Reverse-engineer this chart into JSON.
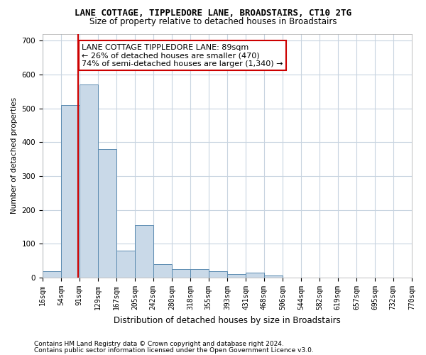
{
  "title": "LANE COTTAGE, TIPPLEDORE LANE, BROADSTAIRS, CT10 2TG",
  "subtitle": "Size of property relative to detached houses in Broadstairs",
  "xlabel": "Distribution of detached houses by size in Broadstairs",
  "ylabel": "Number of detached properties",
  "bin_edges": [
    16,
    54,
    91,
    129,
    167,
    205,
    242,
    280,
    318,
    355,
    393,
    431,
    468,
    506,
    544,
    582,
    619,
    657,
    695,
    732,
    770
  ],
  "bar_heights": [
    20,
    510,
    570,
    380,
    80,
    155,
    40,
    25,
    25,
    20,
    10,
    15,
    7,
    0,
    0,
    0,
    0,
    0,
    0,
    0
  ],
  "bar_color": "#c9d9e8",
  "bar_edge_color": "#5a8ab0",
  "vline_color": "#cc0000",
  "vline_x": 89,
  "annotation_text": "LANE COTTAGE TIPPLEDORE LANE: 89sqm\n← 26% of detached houses are smaller (470)\n74% of semi-detached houses are larger (1,340) →",
  "annotation_box_color": "#ffffff",
  "annotation_box_edge": "#cc0000",
  "ylim": [
    0,
    720
  ],
  "yticks": [
    0,
    100,
    200,
    300,
    400,
    500,
    600,
    700
  ],
  "footnote1": "Contains HM Land Registry data © Crown copyright and database right 2024.",
  "footnote2": "Contains public sector information licensed under the Open Government Licence v3.0.",
  "background_color": "#ffffff",
  "grid_color": "#c8d4e0",
  "title_fontsize": 9,
  "subtitle_fontsize": 8.5,
  "ylabel_fontsize": 7.5,
  "xlabel_fontsize": 8.5,
  "tick_fontsize": 7,
  "footnote_fontsize": 6.5,
  "annotation_fontsize": 8
}
